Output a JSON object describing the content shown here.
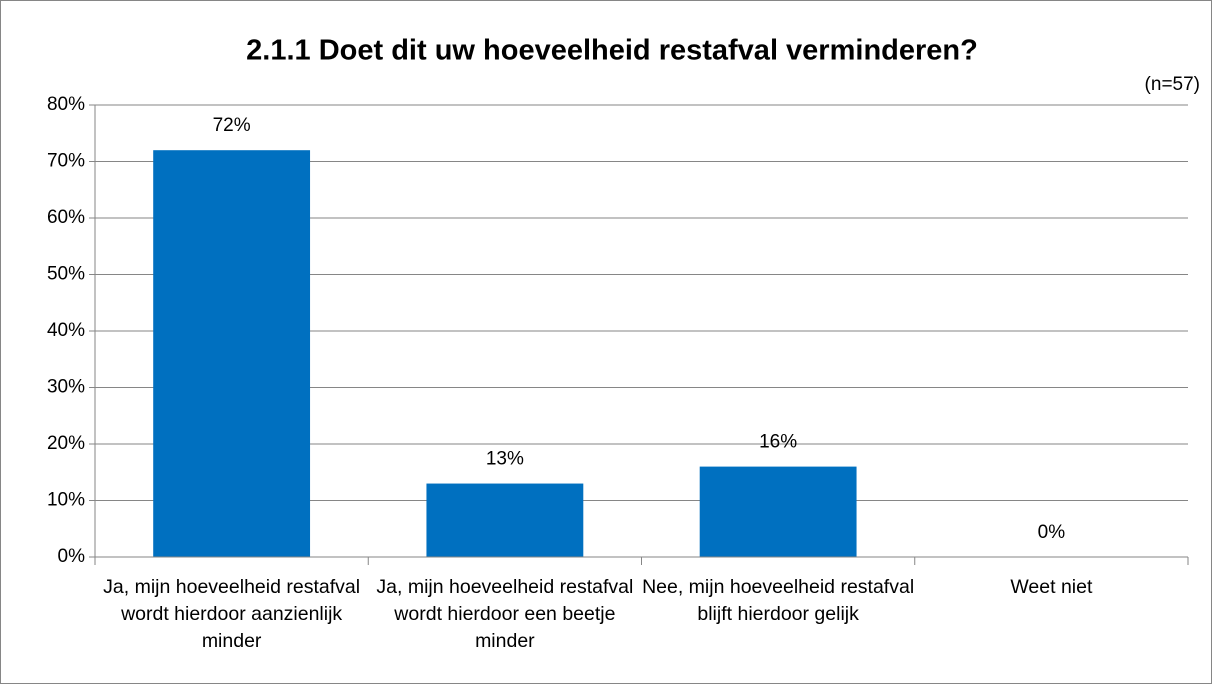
{
  "chart_data": {
    "type": "bar",
    "title": "2.1.1 Doet dit uw hoeveelheid restafval verminderen?",
    "annotation": "(n=57)",
    "categories": [
      "Ja, mijn hoeveelheid restafval wordt hierdoor aanzienlijk minder",
      "Ja, mijn hoeveelheid restafval wordt hierdoor een beetje minder",
      "Nee, mijn hoeveelheid restafval blijft hierdoor gelijk",
      "Weet niet"
    ],
    "values": [
      72,
      13,
      16,
      0
    ],
    "value_labels": [
      "72%",
      "13%",
      "16%",
      "0%"
    ],
    "color": "#0070c0",
    "ylim": [
      0,
      80
    ],
    "yticks": [
      {
        "value": 0,
        "label": "0%"
      },
      {
        "value": 10,
        "label": "10%"
      },
      {
        "value": 20,
        "label": "20%"
      },
      {
        "value": 30,
        "label": "30%"
      },
      {
        "value": 40,
        "label": "40%"
      },
      {
        "value": 50,
        "label": "50%"
      },
      {
        "value": 60,
        "label": "60%"
      },
      {
        "value": 70,
        "label": "70%"
      },
      {
        "value": 80,
        "label": "80%"
      }
    ],
    "grid": true
  }
}
